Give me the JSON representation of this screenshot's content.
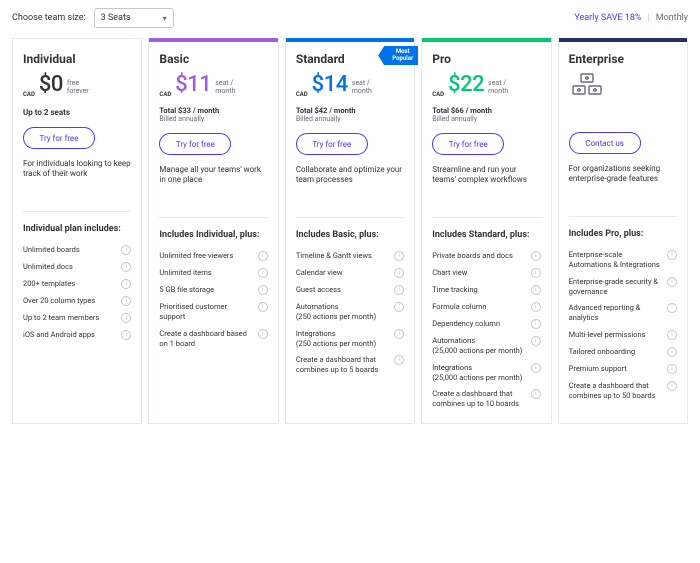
{
  "topbar": {
    "team_label": "Choose team size:",
    "seats_value": "3 Seats",
    "yearly_label": "Yearly SAVE 18%",
    "monthly_label": "Monthly",
    "divider": "|"
  },
  "badge": {
    "line1": "Most",
    "line2": "Popular"
  },
  "currency_sub": "CAD",
  "plans": [
    {
      "name": "Individual",
      "amount": "0",
      "prefix": "$",
      "unit_line1": "free",
      "unit_line2": "forever",
      "seats_note": "Up to 2 seats",
      "cta": "Try for free",
      "desc": "For individuals looking to keep track of their work",
      "includes_title": "Individual plan includes:",
      "features": [
        "Unlimited boards",
        "Unlimited docs",
        "200+ templates",
        "Over 20 column types",
        "Up to 2 team members",
        "iOS and Android apps"
      ]
    },
    {
      "name": "Basic",
      "amount": "11",
      "prefix": "$",
      "unit_line1": "seat /",
      "unit_line2": "month",
      "total": "Total $33 / month",
      "billed": "Billed annually",
      "cta": "Try for free",
      "desc": "Manage all your teams' work in one place",
      "includes_title": "Includes Individual, plus:",
      "features": [
        "Unlimited free viewers",
        "Unlimited items",
        "5 GB file storage",
        "Prioritised customer support",
        "Create a dashboard based on 1 board"
      ]
    },
    {
      "name": "Standard",
      "amount": "14",
      "prefix": "$",
      "unit_line1": "seat /",
      "unit_line2": "month",
      "total": "Total $42 / month",
      "billed": "Billed annually",
      "cta": "Try for free",
      "desc": "Collaborate and optimize your team processes",
      "includes_title": "Includes Basic, plus:",
      "features": [
        "Timeline & Gantt views",
        "Calendar view",
        "Guest access",
        "Automations\n(250 actions per month)",
        "Integrations\n(250 actions per month)",
        "Create a dashboard that combines up to 5 boards"
      ]
    },
    {
      "name": "Pro",
      "amount": "22",
      "prefix": "$",
      "unit_line1": "seat /",
      "unit_line2": "month",
      "total": "Total $66 / month",
      "billed": "Billed annually",
      "cta": "Try for free",
      "desc": "Streamline and run your teams' complex workflows",
      "includes_title": "Includes Standard, plus:",
      "features": [
        "Private boards and docs",
        "Chart view",
        "Time tracking",
        "Formula column",
        "Dependency column",
        "Automations\n(25,000 actions per month)",
        "Integrations\n(25,000 actions per month)",
        "Create a dashboard that combines up to 10 boards"
      ]
    },
    {
      "name": "Enterprise",
      "cta": "Contact us",
      "desc": "For organizations seeking enterprise-grade features",
      "includes_title": "Includes Pro, plus:",
      "features": [
        "Enterprise-scale Automations & Integrations",
        "Enterprise-grade security & governance",
        "Advanced reporting & analytics",
        "Multi-level permissions",
        "Tailored onboarding",
        "Premium support",
        "Create a dashboard that combines up to 50 boards"
      ]
    }
  ]
}
